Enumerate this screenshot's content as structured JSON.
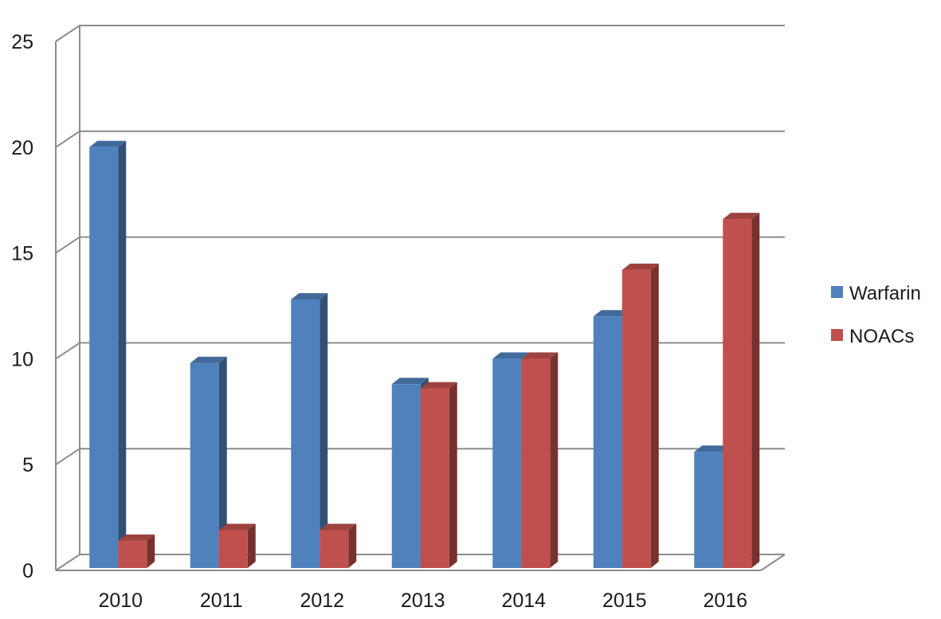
{
  "chart_data": {
    "type": "bar",
    "style": "3d-clustered-column",
    "categories": [
      "2010",
      "2011",
      "2012",
      "2013",
      "2014",
      "2015",
      "2016"
    ],
    "series": [
      {
        "name": "Warfarin",
        "color": "#4F81BD",
        "values": [
          20.0,
          9.8,
          12.8,
          8.8,
          10.0,
          12.0,
          5.6
        ]
      },
      {
        "name": "NOACs",
        "color": "#C0504D",
        "values": [
          1.4,
          1.9,
          1.9,
          8.6,
          10.0,
          14.2,
          16.6
        ]
      }
    ],
    "yticks": [
      "0",
      "5",
      "10",
      "15",
      "20",
      "25"
    ],
    "ylim": [
      0,
      25
    ],
    "grid": true,
    "legend_position": "right"
  }
}
